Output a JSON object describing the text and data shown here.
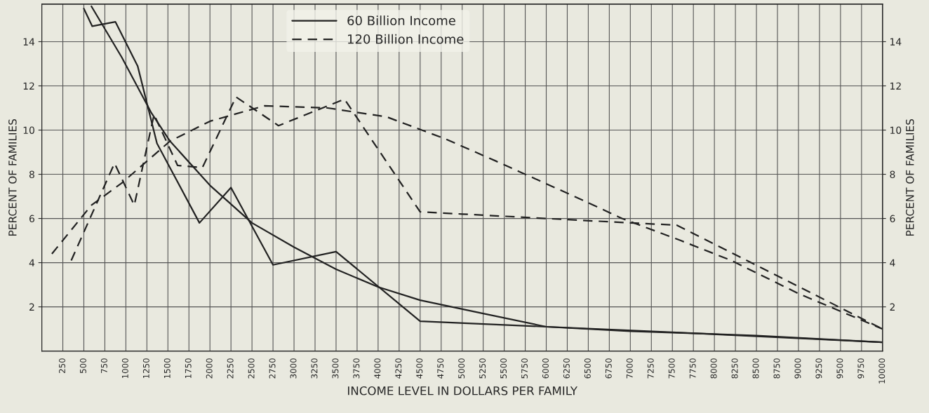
{
  "chart_data": {
    "type": "line",
    "xlabel": "INCOME LEVEL IN DOLLARS PER FAMILY",
    "ylabel": "PERCENT OF FAMILIES",
    "y2label": "PERCENT OF FAMILIES",
    "xlim": [
      0,
      10000
    ],
    "xticks": [
      250,
      500,
      750,
      1000,
      1250,
      1500,
      1750,
      2000,
      2250,
      2500,
      2750,
      3000,
      3250,
      3500,
      3750,
      4000,
      4250,
      4500,
      4750,
      5000,
      5250,
      5500,
      5750,
      6000,
      6250,
      6500,
      6750,
      7000,
      7250,
      7500,
      7750,
      8000,
      8250,
      8500,
      8750,
      9000,
      9250,
      9500,
      9750,
      10000
    ],
    "ylim": [
      0,
      15.7
    ],
    "yticks": [
      2,
      4,
      6,
      8,
      10,
      12,
      14
    ],
    "y2lim": [
      0,
      15.7
    ],
    "y2ticks": [
      2,
      4,
      6,
      8,
      10,
      12,
      14
    ],
    "grid": true,
    "legend": "top",
    "marker": "none",
    "series": [
      {
        "name": "60 Billion Income",
        "color": "#222222",
        "line_style": "solid",
        "x": [
          500,
          600,
          875,
          1140,
          1370,
          1875,
          2250,
          2750,
          3500,
          4500,
          7500,
          10000
        ],
        "values": [
          15.5,
          14.7,
          14.9,
          12.9,
          9.4,
          5.8,
          7.4,
          3.9,
          4.5,
          1.35,
          0.85,
          0.4
        ]
      },
      {
        "name": "120 Billion Income",
        "color": "#222222",
        "line_style": "dashed",
        "x": [
          350,
          865,
          1100,
          1335,
          1615,
          1910,
          2310,
          2815,
          3600,
          4500,
          5000,
          6000,
          7000,
          7550,
          10000
        ],
        "values": [
          4.1,
          8.5,
          6.6,
          10.7,
          8.4,
          8.3,
          11.5,
          10.2,
          11.4,
          6.3,
          6.2,
          6.0,
          5.8,
          5.7,
          1.0
        ]
      },
      {
        "color": "#222222",
        "line_style": "solid",
        "x": [
          590,
          950,
          1300,
          1525,
          2000,
          2500,
          3000,
          3500,
          4000,
          4500,
          5250,
          6000,
          7000,
          8500,
          10000
        ],
        "values": [
          15.6,
          13.3,
          10.8,
          9.5,
          7.5,
          5.8,
          4.7,
          3.7,
          2.9,
          2.3,
          1.7,
          1.1,
          0.9,
          0.7,
          0.4
        ]
      },
      {
        "color": "#222222",
        "line_style": "dashed",
        "x": [
          120,
          590,
          950,
          1525,
          2000,
          2650,
          3400,
          4100,
          4800,
          5400,
          6450,
          6900,
          7600,
          8200,
          9000,
          10000
        ],
        "values": [
          4.4,
          6.6,
          7.6,
          9.5,
          10.4,
          11.1,
          11.0,
          10.6,
          9.6,
          8.6,
          6.8,
          6.0,
          5.0,
          4.1,
          2.6,
          1.0
        ]
      }
    ]
  }
}
